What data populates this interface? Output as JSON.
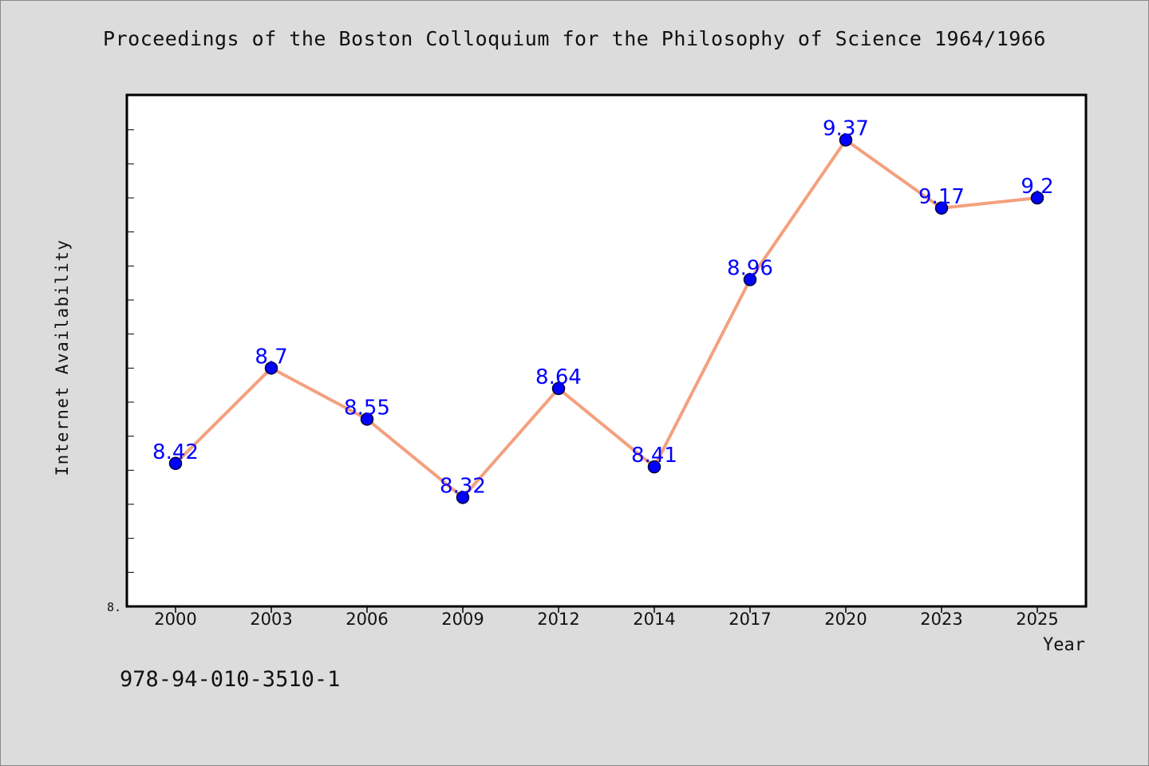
{
  "chart_data": {
    "type": "line",
    "title": "Proceedings of the Boston Colloquium for the Philosophy of Science 1964/1966",
    "xlabel": "Year",
    "ylabel": "Internet Availability",
    "categories": [
      "2000",
      "2003",
      "2006",
      "2009",
      "2012",
      "2014",
      "2017",
      "2020",
      "2023",
      "2025"
    ],
    "series": [
      {
        "values": [
          8.42,
          8.7,
          8.55,
          8.32,
          8.64,
          8.41,
          8.96,
          9.37,
          9.17,
          9.2
        ],
        "labels": [
          "8.42",
          "8.7",
          "8.55",
          "8.32",
          "8.64",
          "8.41",
          "8.96",
          "9.37",
          "9.17",
          "9.2"
        ]
      }
    ],
    "ylim": [
      8.0,
      9.5
    ],
    "y_tick_label": "8.",
    "line_color": "#f4a07e",
    "marker_color": "#0000ff",
    "label_color": "#0000ff",
    "grid": false
  },
  "footer": {
    "code": "978-94-010-3510-1"
  }
}
